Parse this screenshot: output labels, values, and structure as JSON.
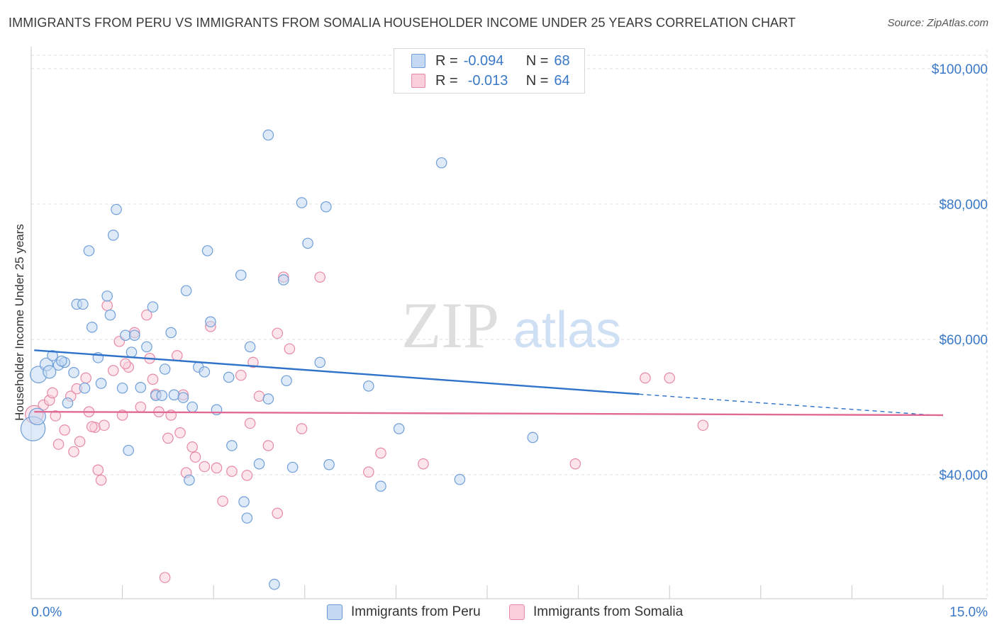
{
  "header": {
    "title": "IMMIGRANTS FROM PERU VS IMMIGRANTS FROM SOMALIA HOUSEHOLDER INCOME UNDER 25 YEARS CORRELATION CHART",
    "source": "Source: ZipAtlas.com"
  },
  "legend": {
    "peru": {
      "r_label": "R =",
      "r_value": "-0.094",
      "n_label": "N =",
      "n_value": "68"
    },
    "somalia": {
      "r_label": "R =",
      "r_value": "-0.013",
      "n_label": "N =",
      "n_value": "64"
    }
  },
  "watermark": {
    "zip": "ZIP",
    "atlas": "atlas"
  },
  "colors": {
    "peru_fill": "#c5d9f3",
    "peru_stroke": "#6f9fd8",
    "peru_line": "#2f72c9",
    "somalia_fill": "#f9cfdb",
    "somalia_stroke": "#e68aa6",
    "somalia_line": "#e06a94",
    "tick_label": "#3a78c8",
    "grid": "#dcdcdc"
  },
  "chart_data": {
    "type": "scatter",
    "title": "IMMIGRANTS FROM PERU VS IMMIGRANTS FROM SOMALIA HOUSEHOLDER INCOME UNDER 25 YEARS CORRELATION CHART",
    "xlabel": "",
    "ylabel": "Householder Income Under 25 years",
    "xlim": [
      0,
      15
    ],
    "ylim": [
      20000,
      102000
    ],
    "x_tick_labels": [
      "0.0%",
      "15.0%"
    ],
    "y_ticks": [
      {
        "value": 40000,
        "label": "$40,000"
      },
      {
        "value": 60000,
        "label": "$60,000"
      },
      {
        "value": 80000,
        "label": "$80,000"
      },
      {
        "value": 100000,
        "label": "$100,000"
      }
    ],
    "legend_placement": "top-center",
    "grid": true,
    "series": [
      {
        "name": "Immigrants from Peru",
        "color": "#6f9fd8",
        "points": [
          [
            0.03,
            46800,
            1.9
          ],
          [
            0.1,
            48600,
            1.3
          ],
          [
            0.12,
            54800,
            1.3
          ],
          [
            0.25,
            56300,
            1.0
          ],
          [
            0.3,
            55200,
            1.0
          ],
          [
            0.35,
            57600,
            0.8
          ],
          [
            0.45,
            56200,
            0.8
          ],
          [
            0.55,
            56600,
            0.8
          ],
          [
            0.6,
            50600,
            0.8
          ],
          [
            0.75,
            65200,
            0.8
          ],
          [
            0.85,
            65200,
            0.8
          ],
          [
            0.88,
            52800,
            0.8
          ],
          [
            0.95,
            73100,
            0.8
          ],
          [
            1.0,
            61800,
            0.8
          ],
          [
            1.1,
            57300,
            0.8
          ],
          [
            1.15,
            53500,
            0.8
          ],
          [
            1.25,
            66400,
            0.8
          ],
          [
            1.3,
            63600,
            0.8
          ],
          [
            1.35,
            75400,
            0.8
          ],
          [
            1.4,
            79200,
            0.8
          ],
          [
            1.55,
            60600,
            0.8
          ],
          [
            1.6,
            43600,
            0.8
          ],
          [
            1.65,
            58100,
            0.8
          ],
          [
            1.7,
            60600,
            0.8
          ],
          [
            1.8,
            52900,
            0.8
          ],
          [
            1.9,
            58900,
            0.8
          ],
          [
            2.0,
            64800,
            0.8
          ],
          [
            2.05,
            51700,
            0.8
          ],
          [
            2.15,
            51700,
            0.8
          ],
          [
            2.3,
            61000,
            0.8
          ],
          [
            2.35,
            51800,
            0.8
          ],
          [
            2.5,
            51400,
            0.8
          ],
          [
            2.55,
            67200,
            0.8
          ],
          [
            2.6,
            39200,
            0.8
          ],
          [
            2.65,
            50000,
            0.8
          ],
          [
            2.75,
            55900,
            0.8
          ],
          [
            2.85,
            55200,
            0.8
          ],
          [
            2.9,
            73100,
            0.8
          ],
          [
            2.95,
            62600,
            0.8
          ],
          [
            3.05,
            49600,
            0.8
          ],
          [
            3.25,
            54400,
            0.8
          ],
          [
            3.3,
            44300,
            0.8
          ],
          [
            3.45,
            69500,
            0.8
          ],
          [
            3.5,
            36000,
            0.8
          ],
          [
            3.55,
            33600,
            0.8
          ],
          [
            3.6,
            58900,
            0.8
          ],
          [
            3.75,
            41600,
            0.8
          ],
          [
            3.9,
            90200,
            0.8
          ],
          [
            4.0,
            23800,
            0.8
          ],
          [
            4.15,
            68800,
            0.8
          ],
          [
            4.2,
            53900,
            0.8
          ],
          [
            4.3,
            41100,
            0.8
          ],
          [
            4.45,
            80200,
            0.8
          ],
          [
            4.55,
            74200,
            0.8
          ],
          [
            4.75,
            56600,
            0.8
          ],
          [
            4.85,
            79600,
            0.8
          ],
          [
            4.9,
            41500,
            0.8
          ],
          [
            5.55,
            53100,
            0.8
          ],
          [
            5.75,
            38300,
            0.8
          ],
          [
            6.05,
            46800,
            0.8
          ],
          [
            6.75,
            86100,
            0.8
          ],
          [
            7.05,
            39300,
            0.8
          ],
          [
            8.25,
            45500,
            0.8
          ],
          [
            0.5,
            56800,
            0.8
          ],
          [
            1.5,
            52800,
            0.8
          ],
          [
            0.7,
            55100,
            0.8
          ],
          [
            2.2,
            55600,
            0.8
          ],
          [
            3.9,
            51200,
            0.8
          ]
        ]
      },
      {
        "name": "Immigrants from Somalia",
        "color": "#e68aa6",
        "points": [
          [
            0.05,
            48900,
            1.4
          ],
          [
            0.2,
            50300,
            0.8
          ],
          [
            0.3,
            51000,
            0.8
          ],
          [
            0.35,
            52100,
            0.8
          ],
          [
            0.45,
            44500,
            0.8
          ],
          [
            0.55,
            46600,
            0.8
          ],
          [
            0.65,
            51600,
            0.8
          ],
          [
            0.7,
            43400,
            0.8
          ],
          [
            0.75,
            52700,
            0.8
          ],
          [
            0.8,
            44900,
            0.8
          ],
          [
            0.9,
            54300,
            0.8
          ],
          [
            0.95,
            49300,
            0.8
          ],
          [
            1.05,
            47000,
            0.8
          ],
          [
            1.1,
            40700,
            0.8
          ],
          [
            1.15,
            39200,
            0.8
          ],
          [
            1.25,
            65000,
            0.8
          ],
          [
            1.35,
            55400,
            0.8
          ],
          [
            1.45,
            59700,
            0.8
          ],
          [
            1.5,
            48800,
            0.8
          ],
          [
            1.6,
            55900,
            0.8
          ],
          [
            1.7,
            61000,
            0.8
          ],
          [
            1.8,
            50000,
            0.8
          ],
          [
            1.9,
            63600,
            0.8
          ],
          [
            1.95,
            57200,
            0.8
          ],
          [
            2.0,
            54100,
            0.8
          ],
          [
            2.1,
            49300,
            0.8
          ],
          [
            2.2,
            24800,
            0.8
          ],
          [
            2.25,
            45400,
            0.8
          ],
          [
            2.3,
            48800,
            0.8
          ],
          [
            2.4,
            57600,
            0.8
          ],
          [
            2.5,
            51800,
            0.8
          ],
          [
            2.55,
            40300,
            0.8
          ],
          [
            2.65,
            44100,
            0.8
          ],
          [
            2.7,
            42600,
            0.8
          ],
          [
            2.85,
            41200,
            0.8
          ],
          [
            2.95,
            61900,
            0.8
          ],
          [
            3.05,
            41000,
            0.8
          ],
          [
            3.15,
            36100,
            0.8
          ],
          [
            3.3,
            40500,
            0.8
          ],
          [
            3.45,
            54700,
            0.8
          ],
          [
            3.55,
            39900,
            0.8
          ],
          [
            3.65,
            56600,
            0.8
          ],
          [
            3.75,
            51600,
            0.8
          ],
          [
            3.9,
            44300,
            0.8
          ],
          [
            4.05,
            34300,
            0.8
          ],
          [
            4.15,
            69200,
            0.8
          ],
          [
            4.25,
            58600,
            0.8
          ],
          [
            4.45,
            46800,
            0.8
          ],
          [
            4.75,
            69200,
            0.8
          ],
          [
            5.55,
            40400,
            0.8
          ],
          [
            5.75,
            43200,
            0.8
          ],
          [
            6.45,
            41600,
            0.8
          ],
          [
            8.95,
            41600,
            0.8
          ],
          [
            10.1,
            54300,
            0.8
          ],
          [
            10.5,
            54300,
            0.8
          ],
          [
            11.05,
            47300,
            0.8
          ],
          [
            0.4,
            48700,
            0.8
          ],
          [
            1.2,
            47300,
            0.8
          ],
          [
            1.55,
            56400,
            0.8
          ],
          [
            2.05,
            51900,
            0.8
          ],
          [
            2.45,
            46200,
            0.8
          ],
          [
            3.6,
            47600,
            0.8
          ],
          [
            4.05,
            60900,
            0.8
          ],
          [
            1.0,
            47100,
            0.8
          ]
        ]
      }
    ],
    "trend_lines": [
      {
        "series": "Immigrants from Peru",
        "solid": [
          [
            0.05,
            58400
          ],
          [
            10.0,
            51900
          ]
        ],
        "dashed": [
          [
            10.0,
            51900
          ],
          [
            15.0,
            48700
          ]
        ]
      },
      {
        "series": "Immigrants from Somalia",
        "solid": [
          [
            0.05,
            49300
          ],
          [
            15.0,
            48800
          ]
        ]
      }
    ]
  },
  "bottom_legend": {
    "peru": "Immigrants from Peru",
    "somalia": "Immigrants from Somalia"
  }
}
